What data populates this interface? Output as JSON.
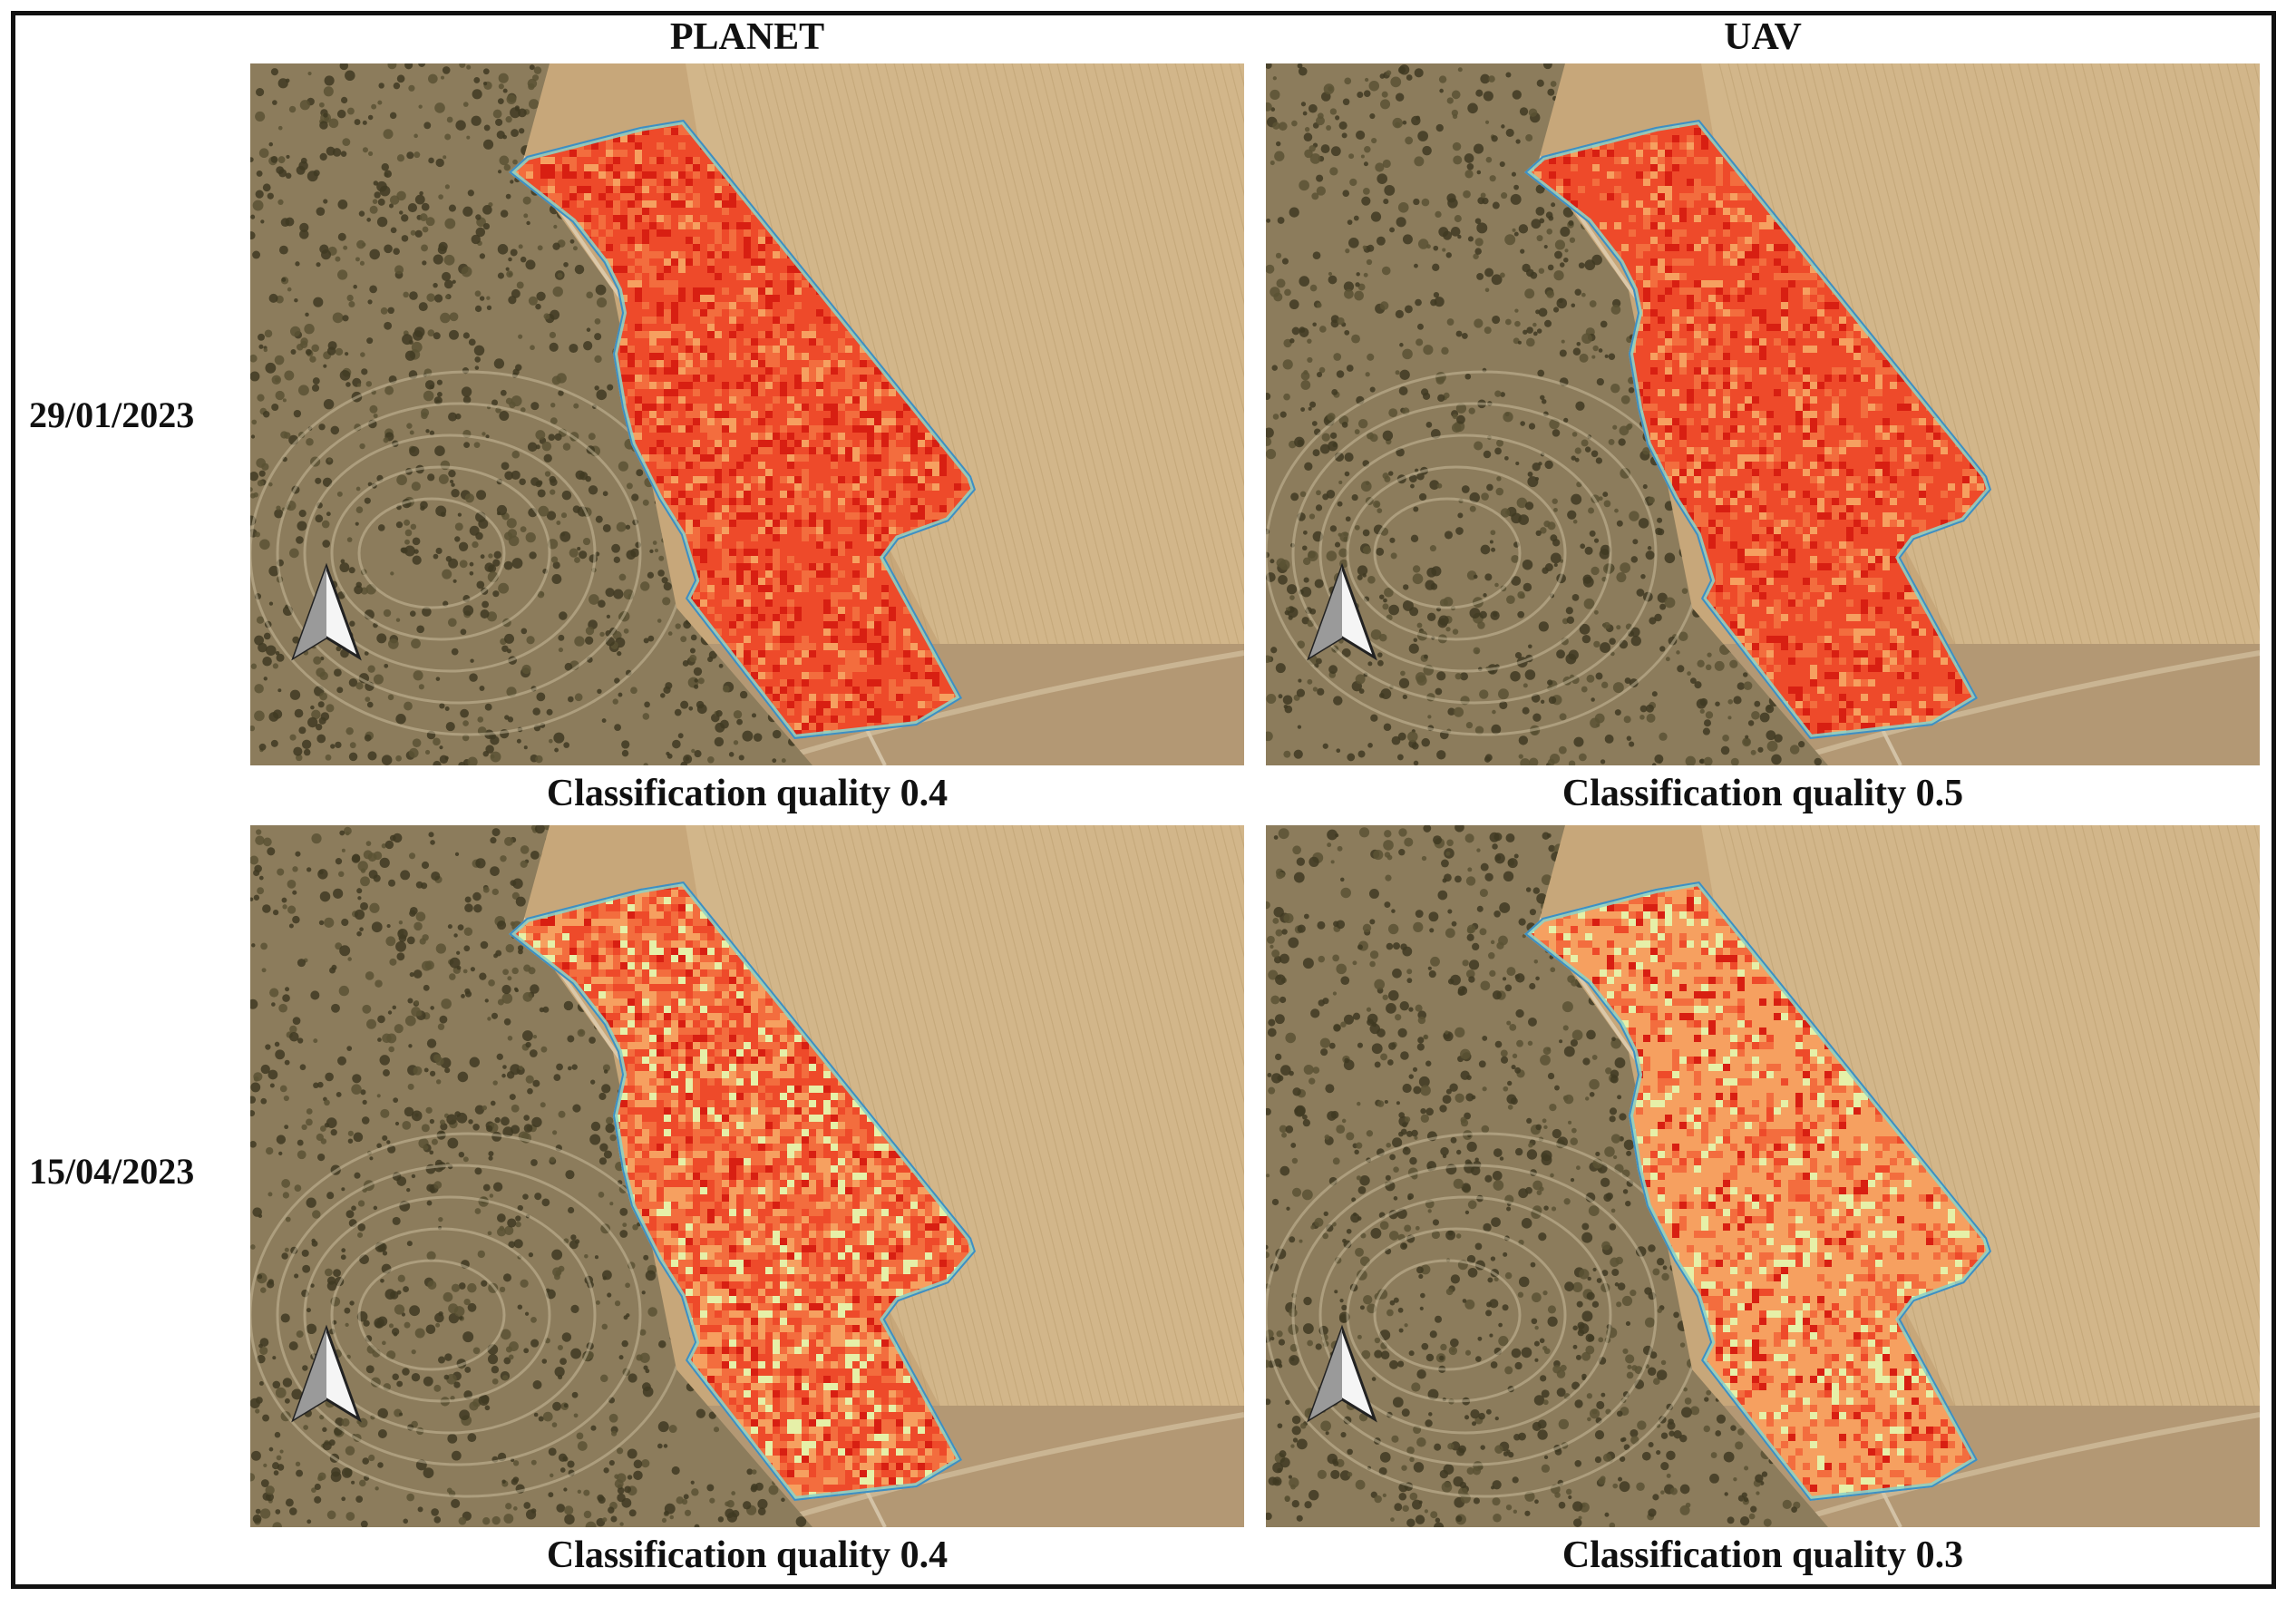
{
  "columns": [
    "PLANET",
    "UAV"
  ],
  "rows": [
    "29/01/2023",
    "15/04/2023"
  ],
  "panels": [
    {
      "caption": "Classification quality 0.4",
      "palette": [
        "#d81f12",
        "#ee4a2a",
        "#f36d3e",
        "#f6a060",
        "#e6f0a8",
        "#8fd2c3",
        "#3d8fc4"
      ],
      "weights": [
        0.16,
        0.52,
        0.24,
        0.08,
        0,
        0,
        0
      ]
    },
    {
      "caption": "Classification quality 0.5",
      "palette": [
        "#d81f12",
        "#ee4a2a",
        "#f36d3e",
        "#f6a060",
        "#e6f0a8",
        "#8fd2c3",
        "#3d8fc4"
      ],
      "weights": [
        0.1,
        0.6,
        0.2,
        0.1,
        0,
        0,
        0
      ]
    },
    {
      "caption": "Classification quality 0.4",
      "palette": [
        "#d81f12",
        "#ee4a2a",
        "#f36d3e",
        "#f6a060",
        "#e6f0a8",
        "#8fd2c3",
        "#3d8fc4"
      ],
      "weights": [
        0.05,
        0.3,
        0.3,
        0.25,
        0.1,
        0,
        0
      ]
    },
    {
      "caption": "Classification quality 0.3",
      "palette": [
        "#d81f12",
        "#ee4a2a",
        "#f36d3e",
        "#f6a060",
        "#e6f0a8",
        "#8fd2c3",
        "#3d8fc4"
      ],
      "weights": [
        0.05,
        0.08,
        0.17,
        0.6,
        0.1,
        0,
        0
      ]
    }
  ],
  "colors": {
    "frame": "#111111",
    "field": "#d2b68a",
    "vegetation": "#3f3a22",
    "edge_light": "#8fd2c3",
    "edge_dark": "#3d8fc4"
  },
  "icons": {
    "north_arrow": "north-arrow-icon"
  }
}
